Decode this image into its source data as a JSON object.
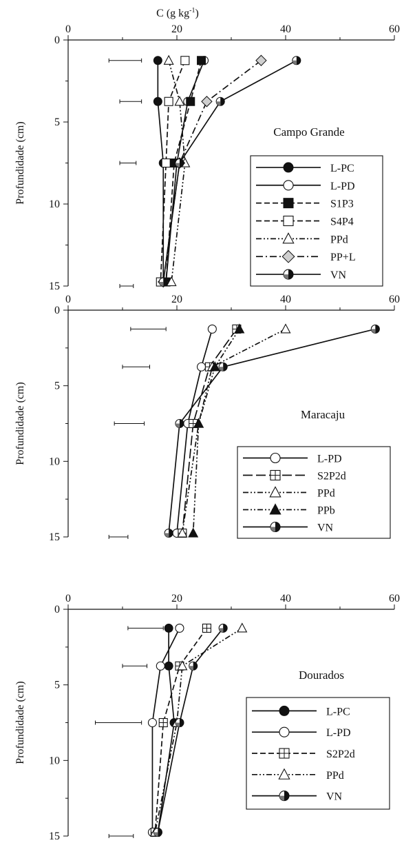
{
  "figure": {
    "top_axis_label": "C (g kg",
    "top_axis_label_sup": "-1",
    "top_axis_label_end": ")"
  },
  "chart_data": [
    {
      "type": "line",
      "title": "Campo Grande",
      "xlabel": "C (g kg-1)",
      "ylabel": "Profundidade (cm)",
      "xlim": [
        0,
        60
      ],
      "ylim": [
        0,
        15
      ],
      "x_ticks": [
        "0",
        "20",
        "40",
        "60"
      ],
      "y_ticks": [
        "0",
        "5",
        "10",
        "15"
      ],
      "depths": [
        1.25,
        3.75,
        7.5,
        14.75
      ],
      "legend_position": "right",
      "series": [
        {
          "name": "L-PC",
          "x": [
            16.5,
            16.5,
            17.5,
            17.5
          ],
          "line": "solid",
          "marker": "filled-circle"
        },
        {
          "name": "L-PD",
          "x": [
            25,
            22,
            20,
            18
          ],
          "line": "solid",
          "marker": "open-circle"
        },
        {
          "name": "S1P3",
          "x": [
            24.5,
            22.5,
            19.5,
            18
          ],
          "line": "dashed",
          "marker": "filled-square"
        },
        {
          "name": "S4P4",
          "x": [
            21.5,
            18.5,
            18,
            17
          ],
          "line": "dashed",
          "marker": "open-square"
        },
        {
          "name": "PPd",
          "x": [
            18.5,
            20.5,
            21.5,
            19
          ],
          "line": "dash-dot-dot",
          "marker": "open-triangle"
        },
        {
          "name": "PP+L",
          "x": [
            35.5,
            25.5,
            20.5,
            17.5
          ],
          "line": "dash-dot",
          "marker": "diamond"
        },
        {
          "name": "VN",
          "x": [
            42,
            28,
            20.5,
            17.5
          ],
          "line": "solid",
          "marker": "half-circle"
        }
      ],
      "error_bars": [
        {
          "depth": 1.25,
          "x_min": 7.5,
          "x_max": 13.5
        },
        {
          "depth": 3.75,
          "x_min": 9.5,
          "x_max": 13.5
        },
        {
          "depth": 7.5,
          "x_min": 9.5,
          "x_max": 12.5
        },
        {
          "depth": 15,
          "x_min": 9.5,
          "x_max": 12
        }
      ]
    },
    {
      "type": "line",
      "title": "Maracaju",
      "xlabel": "C (g kg-1)",
      "ylabel": "Profundidade (cm)",
      "xlim": [
        0,
        60
      ],
      "ylim": [
        0,
        15
      ],
      "x_ticks": [
        "0",
        "20",
        "40",
        "60"
      ],
      "y_ticks": [
        "0",
        "5",
        "10",
        "15"
      ],
      "depths": [
        1.25,
        3.75,
        7.5,
        14.75
      ],
      "legend_position": "right",
      "series": [
        {
          "name": "L-PD",
          "x": [
            26.5,
            24.5,
            22,
            20
          ],
          "line": "solid",
          "marker": "open-circle"
        },
        {
          "name": "S2P2d",
          "x": [
            31,
            26,
            23,
            21
          ],
          "line": "long-dash",
          "marker": "crossed-square"
        },
        {
          "name": "PPd",
          "x": [
            40,
            26.5,
            24,
            21
          ],
          "line": "dash-dot-dot",
          "marker": "open-triangle"
        },
        {
          "name": "PPb",
          "x": [
            31.5,
            27,
            24,
            23
          ],
          "line": "dash-dot-dot",
          "marker": "filled-triangle"
        },
        {
          "name": "VN",
          "x": [
            56.5,
            28.5,
            20.5,
            18.5
          ],
          "line": "solid",
          "marker": "half-circle"
        }
      ],
      "error_bars": [
        {
          "depth": 1.25,
          "x_min": 11.5,
          "x_max": 18
        },
        {
          "depth": 3.75,
          "x_min": 10,
          "x_max": 15
        },
        {
          "depth": 7.5,
          "x_min": 8.5,
          "x_max": 14
        },
        {
          "depth": 15,
          "x_min": 7.5,
          "x_max": 11
        }
      ]
    },
    {
      "type": "line",
      "title": "Dourados",
      "xlabel": "C (g kg-1)",
      "ylabel": "Profundidade (cm)",
      "xlim": [
        0,
        60
      ],
      "ylim": [
        0,
        15
      ],
      "x_ticks": [
        "0",
        "20",
        "40",
        "60"
      ],
      "y_ticks": [
        "0",
        "5",
        "10",
        "15"
      ],
      "depths": [
        1.25,
        3.75,
        7.5,
        14.75
      ],
      "legend_position": "right",
      "series": [
        {
          "name": "L-PC",
          "x": [
            18.5,
            18.5,
            19.5,
            16.5
          ],
          "line": "solid",
          "marker": "filled-circle"
        },
        {
          "name": "L-PD",
          "x": [
            20.5,
            17,
            15.5,
            15.5
          ],
          "line": "solid",
          "marker": "open-circle"
        },
        {
          "name": "S2P2d",
          "x": [
            25.5,
            20.5,
            17.5,
            16
          ],
          "line": "dashed",
          "marker": "crossed-square"
        },
        {
          "name": "PPd",
          "x": [
            32,
            21,
            20,
            16
          ],
          "line": "dash-dot-dot",
          "marker": "open-triangle"
        },
        {
          "name": "VN",
          "x": [
            28.5,
            23,
            20.5,
            16.5
          ],
          "line": "solid",
          "marker": "half-circle"
        }
      ],
      "error_bars": [
        {
          "depth": 1.25,
          "x_min": 11,
          "x_max": 17.5
        },
        {
          "depth": 3.75,
          "x_min": 10,
          "x_max": 14.5
        },
        {
          "depth": 7.5,
          "x_min": 5,
          "x_max": 13.5
        },
        {
          "depth": 15,
          "x_min": 7.5,
          "x_max": 12
        }
      ]
    }
  ]
}
